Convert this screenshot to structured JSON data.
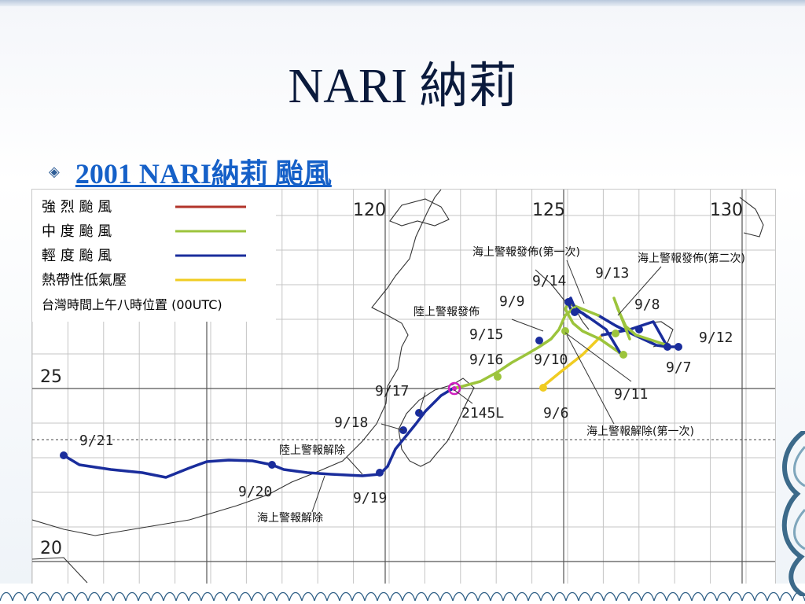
{
  "slide": {
    "title": "NARI  納莉",
    "bullet_link": "2001 NARI納莉 颱風"
  },
  "map": {
    "legend": {
      "items": [
        {
          "label": "強 烈 颱 風",
          "color": "#b2342a"
        },
        {
          "label": "中 度 颱 風",
          "color": "#9cc43c"
        },
        {
          "label": "輕 度 颱 風",
          "color": "#1a2d9c"
        },
        {
          "label": "熱帶性低氣壓",
          "color": "#f0cc22"
        }
      ],
      "note": "台灣時間上午八時位置 (00UTC)"
    },
    "lon_labels": [
      "120",
      "125",
      "130"
    ],
    "lat_labels": [
      "25",
      "20"
    ],
    "dates": [
      "9/21",
      "9/20",
      "9/19",
      "9/18",
      "9/17",
      "9/16",
      "9/15",
      "9/14",
      "9/13",
      "9/9",
      "9/8",
      "9/12",
      "9/7",
      "9/10",
      "9/11",
      "9/6"
    ],
    "annotations": {
      "sea_warn_1": "海上警報發佈(第一次)",
      "sea_warn_2": "海上警報發佈(第二次)",
      "land_warn": "陸上警報發佈",
      "land_lift": "陸上警報解除",
      "sea_lift_1": "海上警報解除(第一次)",
      "sea_lift": "海上警報解除",
      "landfall": "2145L"
    }
  }
}
